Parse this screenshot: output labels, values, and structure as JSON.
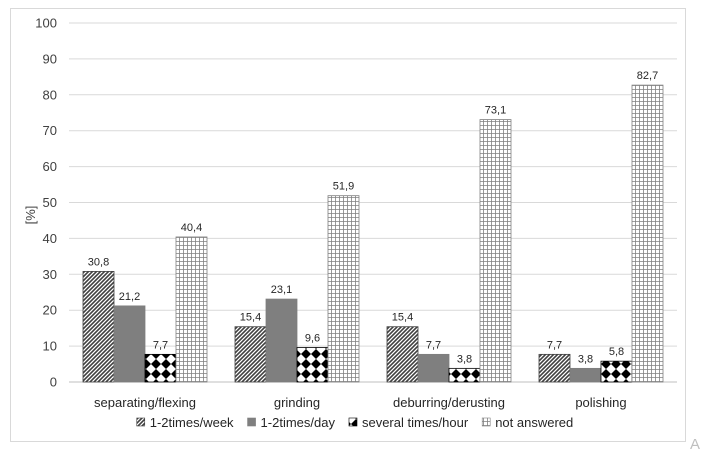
{
  "chart_data": {
    "type": "bar",
    "categories": [
      "separating/flexing",
      "grinding",
      "deburring/derusting",
      "polishing"
    ],
    "series": [
      {
        "name": "1-2times/week",
        "values": [
          30.8,
          15.4,
          15.4,
          7.7
        ],
        "labels": [
          "30,8",
          "15,4",
          "15,4",
          "7,7"
        ],
        "pattern": "diagonal",
        "color": "#404040"
      },
      {
        "name": "1-2times/day",
        "values": [
          21.2,
          23.1,
          7.7,
          3.8
        ],
        "labels": [
          "21,2",
          "23,1",
          "7,7",
          "3,8"
        ],
        "pattern": "solid",
        "color": "#7f7f7f"
      },
      {
        "name": "several times/hour",
        "values": [
          7.7,
          9.6,
          3.8,
          5.8
        ],
        "labels": [
          "7,7",
          "9,6",
          "3,8",
          "5,8"
        ],
        "pattern": "diamonds",
        "color": "#000000"
      },
      {
        "name": "not answered",
        "values": [
          40.4,
          51.9,
          73.1,
          82.7
        ],
        "labels": [
          "40,4",
          "51,9",
          "73,1",
          "82,7"
        ],
        "pattern": "grid",
        "color": "#808080"
      }
    ],
    "ylabel": "[%]",
    "ylim": [
      0,
      100
    ],
    "yticks": [
      0,
      10,
      20,
      30,
      40,
      50,
      60,
      70,
      80,
      90,
      100
    ],
    "grid": true,
    "legend": "bottom"
  },
  "corner_mark": "A"
}
